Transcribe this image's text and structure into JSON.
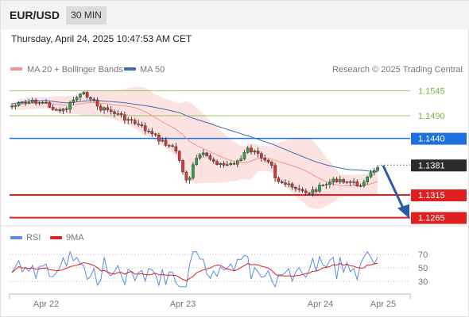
{
  "header": {
    "symbol": "EUR/USD",
    "timeframe": "30 MIN"
  },
  "datetime": "Thursday, April 24, 2025 10:47:53 AM CET",
  "legend": {
    "ma20": {
      "label": "MA 20 + Bollinger Bands",
      "color": "#f4948f"
    },
    "ma50": {
      "label": "MA 50",
      "color": "#3f69b3"
    },
    "credit": "Research © 2025 Trading Central"
  },
  "levels": [
    {
      "label": "1.1545",
      "type": "resistance-green",
      "color": "#7cb342"
    },
    {
      "label": "1.1490",
      "type": "resistance-green",
      "color": "#7cb342"
    },
    {
      "label": "1.1440",
      "type": "pivot-blue",
      "color": "#1e6fe0"
    },
    {
      "label": "1.1381",
      "type": "last-price",
      "color": "#2b2b2b"
    },
    {
      "label": "1.1315",
      "type": "support-red",
      "color": "#e02020"
    },
    {
      "label": "1.1265",
      "type": "support-red",
      "color": "#e02020"
    }
  ],
  "rsi_panel": {
    "rsi_label": "RSI",
    "rsi_color": "#5b8de0",
    "ma_label": "9MA",
    "ma_color": "#e02020",
    "levels": [
      "70",
      "50",
      "30"
    ]
  },
  "x_axis": [
    "Apr 22",
    "Apr 23",
    "Apr 24",
    "Apr 25"
  ],
  "arrow": {
    "direction": "down",
    "color": "#2a5aa8"
  }
}
